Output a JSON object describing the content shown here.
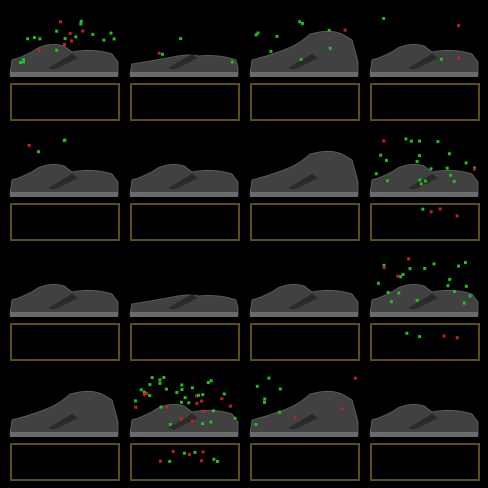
{
  "grid": {
    "rows": 4,
    "cols": 4,
    "background_color": "#000000",
    "box_color": "#5c5114",
    "attribution_colors": {
      "positive": "#1fbf1f",
      "negative": "#c81e1e"
    }
  },
  "tiles": [
    {
      "shape": "low",
      "attribution": "high",
      "box_marks": "none"
    },
    {
      "shape": "flat",
      "attribution": "low",
      "box_marks": "none"
    },
    {
      "shape": "high",
      "attribution": "medium",
      "box_marks": "none"
    },
    {
      "shape": "low",
      "attribution": "low",
      "box_marks": "none"
    },
    {
      "shape": "low",
      "attribution": "low",
      "box_marks": "none"
    },
    {
      "shape": "low",
      "attribution": "none",
      "box_marks": "none"
    },
    {
      "shape": "high",
      "attribution": "none",
      "box_marks": "none"
    },
    {
      "shape": "low",
      "attribution": "high",
      "box_marks": "few"
    },
    {
      "shape": "low",
      "attribution": "none",
      "box_marks": "none"
    },
    {
      "shape": "flat",
      "attribution": "none",
      "box_marks": "none"
    },
    {
      "shape": "low",
      "attribution": "none",
      "box_marks": "none"
    },
    {
      "shape": "low",
      "attribution": "high",
      "box_marks": "few"
    },
    {
      "shape": "high",
      "attribution": "none",
      "box_marks": "none"
    },
    {
      "shape": "low",
      "attribution": "dense",
      "box_marks": "dense"
    },
    {
      "shape": "high",
      "attribution": "medium",
      "box_marks": "none"
    },
    {
      "shape": "low",
      "attribution": "none",
      "box_marks": "none"
    }
  ]
}
